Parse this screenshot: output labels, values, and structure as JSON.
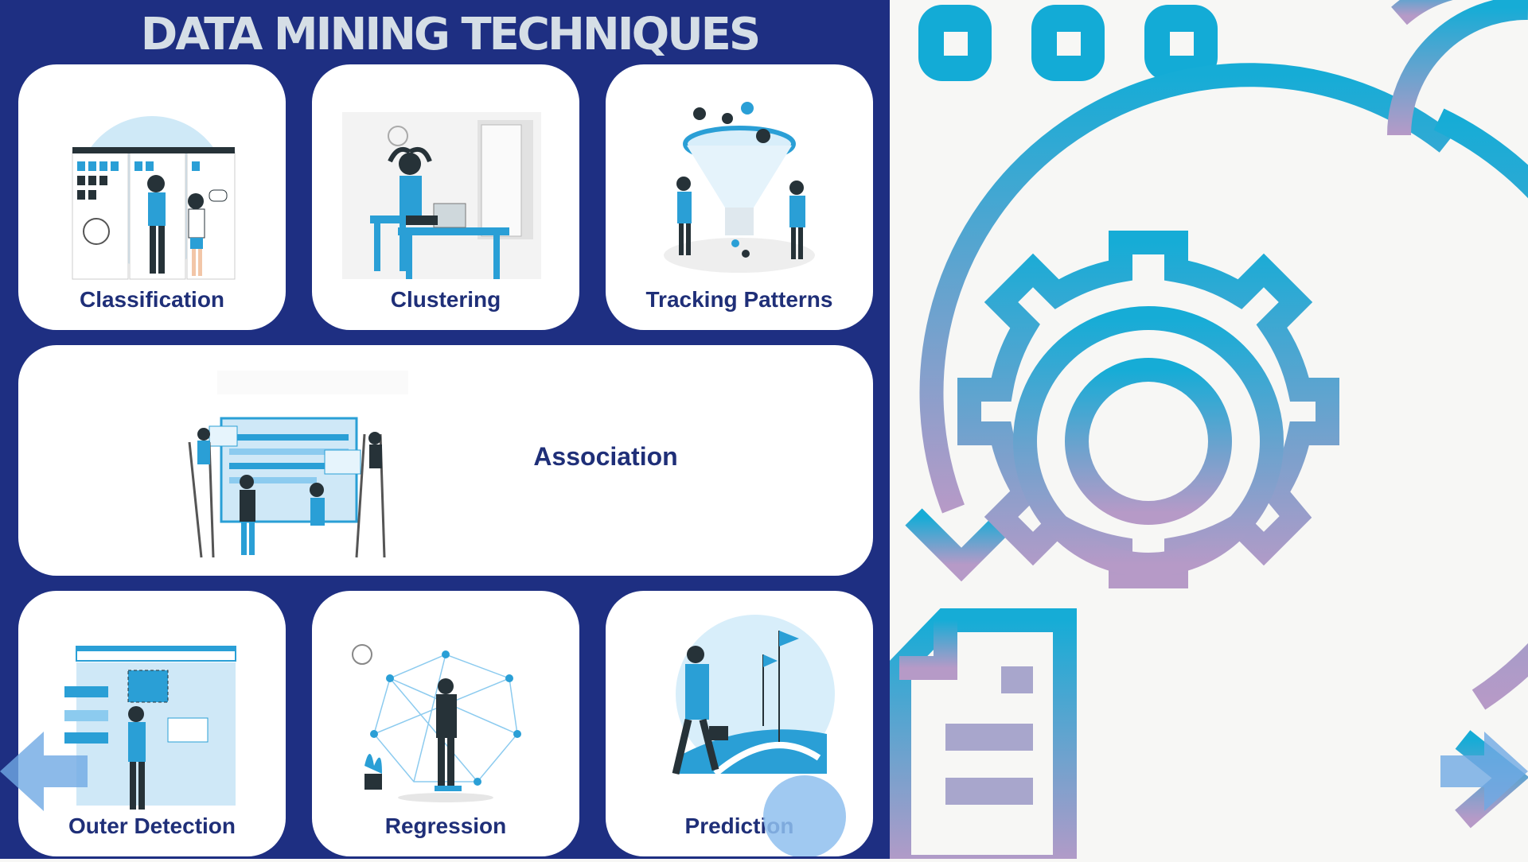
{
  "title": "DATA MINING TECHNIQUES",
  "cards": [
    {
      "label": "Classification",
      "icon": "classification-illustration"
    },
    {
      "label": "Clustering",
      "icon": "clustering-illustration"
    },
    {
      "label": "Tracking Patterns",
      "icon": "tracking-patterns-illustration"
    },
    {
      "label": "Association",
      "icon": "association-illustration"
    },
    {
      "label": "Outer Detection",
      "icon": "outer-detection-illustration"
    },
    {
      "label": "Regression",
      "icon": "regression-illustration"
    },
    {
      "label": "Prediction",
      "icon": "prediction-illustration"
    }
  ],
  "right_panel": {
    "icons": [
      "window-dots-icon",
      "gear-process-icon",
      "document-icon",
      "cycle-arrow-icon"
    ]
  },
  "colors": {
    "panel_bg": "#1e2f82",
    "label": "#1f2f78",
    "accent": "#29a9d6",
    "gradient_end": "#b69ac7"
  }
}
